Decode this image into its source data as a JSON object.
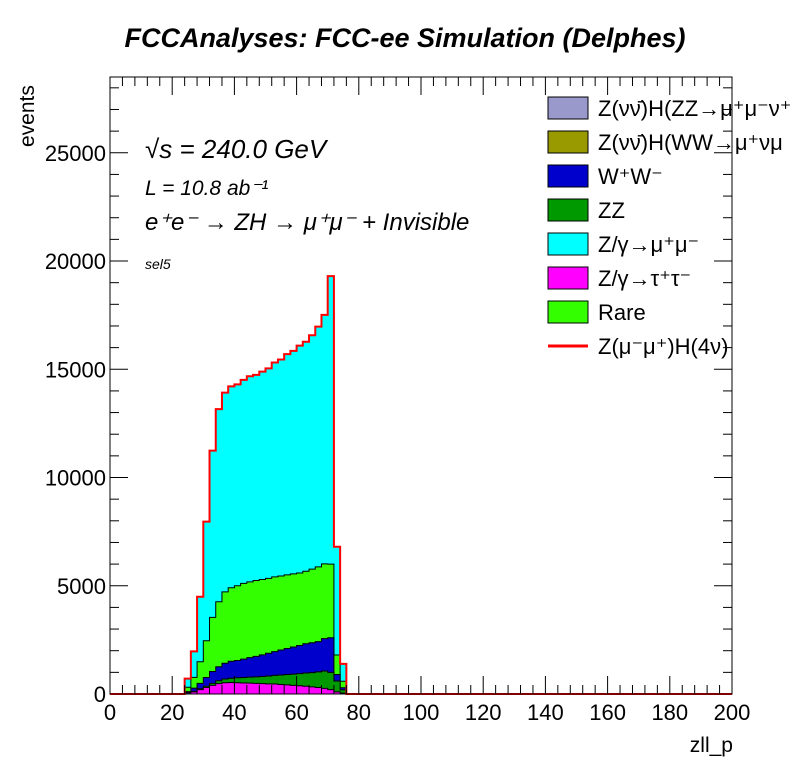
{
  "chart_data": {
    "type": "area",
    "title": "FCCAnalyses: FCC-ee Simulation (Delphes)",
    "xlabel": "zll_p",
    "ylabel": "events",
    "xlim": [
      0,
      200
    ],
    "ylim": [
      0,
      28500
    ],
    "x_ticks": [
      "0",
      "20",
      "40",
      "60",
      "80",
      "100",
      "120",
      "140",
      "160",
      "180",
      "200"
    ],
    "y_ticks": [
      "0",
      "5000",
      "10000",
      "15000",
      "20000",
      "25000"
    ],
    "annotations": {
      "energy": "√s = 240.0 GeV",
      "lumi": "L = 10.8 ab⁻¹",
      "process": "e⁺e⁻ → ZH → μ⁺μ⁻ + Invisible",
      "selection": "sel5"
    },
    "legend_position": "top-right",
    "x": [
      22,
      24,
      26,
      28,
      30,
      32,
      34,
      36,
      38,
      40,
      42,
      44,
      46,
      48,
      50,
      52,
      54,
      56,
      58,
      60,
      62,
      64,
      66,
      68,
      70,
      72,
      74,
      76
    ],
    "series": [
      {
        "name": "Z/γ→τ⁺τ⁻",
        "color": "#ff00ff",
        "values": [
          0,
          50,
          100,
          200,
          300,
          400,
          480,
          520,
          530,
          520,
          510,
          500,
          490,
          480,
          470,
          460,
          440,
          420,
          400,
          380,
          360,
          330,
          300,
          260,
          200,
          100,
          40,
          0
        ]
      },
      {
        "name": "ZZ",
        "color": "#009900",
        "values": [
          0,
          10,
          20,
          40,
          60,
          90,
          130,
          170,
          200,
          230,
          250,
          280,
          300,
          330,
          360,
          400,
          440,
          480,
          520,
          560,
          610,
          660,
          720,
          800,
          800,
          500,
          150,
          0
        ]
      },
      {
        "name": "W⁺W⁻",
        "color": "#0000cc",
        "values": [
          0,
          50,
          150,
          250,
          400,
          550,
          650,
          730,
          780,
          800,
          850,
          900,
          950,
          1000,
          1050,
          1100,
          1150,
          1200,
          1250,
          1300,
          1350,
          1380,
          1400,
          1500,
          1600,
          300,
          100,
          0
        ]
      },
      {
        "name": "Rare",
        "color": "#33ff00",
        "values": [
          0,
          200,
          500,
          1000,
          1700,
          2500,
          3000,
          3300,
          3400,
          3450,
          3500,
          3500,
          3500,
          3480,
          3460,
          3450,
          3420,
          3400,
          3380,
          3350,
          3350,
          3400,
          3450,
          3450,
          3400,
          900,
          300,
          0
        ]
      },
      {
        "name": "Z/γ→μ⁺μ⁻",
        "color": "#00ffff",
        "values": [
          0,
          400,
          1200,
          3000,
          5500,
          7700,
          8900,
          9200,
          9300,
          9300,
          9400,
          9500,
          9500,
          9600,
          9700,
          9900,
          10000,
          10200,
          10300,
          10500,
          10600,
          10800,
          11100,
          11500,
          13300,
          5000,
          800,
          0
        ]
      },
      {
        "name": "Z(νν̄)H(ZZ→μ⁺μ⁻ν⁺ν⁻)",
        "color": "#9999cc",
        "values": [
          0,
          0,
          0,
          0,
          0,
          0,
          0,
          0,
          0,
          0,
          0,
          0,
          0,
          0,
          0,
          0,
          0,
          0,
          0,
          0,
          0,
          0,
          0,
          0,
          0,
          0,
          0,
          0
        ]
      },
      {
        "name": "Z(νν̄)H(WW→μ⁺νμ⁻ν)",
        "color": "#999900",
        "values": [
          0,
          0,
          0,
          0,
          0,
          0,
          0,
          0,
          0,
          0,
          0,
          0,
          0,
          0,
          0,
          0,
          0,
          0,
          0,
          0,
          0,
          0,
          0,
          0,
          0,
          0,
          0,
          0
        ]
      }
    ],
    "signal": {
      "name": "Z(μ⁻μ⁺)H(4ν)",
      "color": "#ff0000"
    },
    "legend": [
      {
        "label": "Z(νν̄)H(ZZ→μ⁺μ⁻ν⁺",
        "color": "#9999cc",
        "kind": "box"
      },
      {
        "label": "Z(νν̄)H(WW→μ⁺νμ",
        "color": "#999900",
        "kind": "box"
      },
      {
        "label": "W⁺W⁻",
        "color": "#0000cc",
        "kind": "box"
      },
      {
        "label": "ZZ",
        "color": "#009900",
        "kind": "box"
      },
      {
        "label": "Z/γ→μ⁺μ⁻",
        "color": "#00ffff",
        "kind": "box"
      },
      {
        "label": "Z/γ→τ⁺τ⁻",
        "color": "#ff00ff",
        "kind": "box"
      },
      {
        "label": "Rare",
        "color": "#33ff00",
        "kind": "box"
      },
      {
        "label": "Z(μ⁻μ⁺)H(4ν)",
        "color": "#ff0000",
        "kind": "line"
      }
    ]
  }
}
